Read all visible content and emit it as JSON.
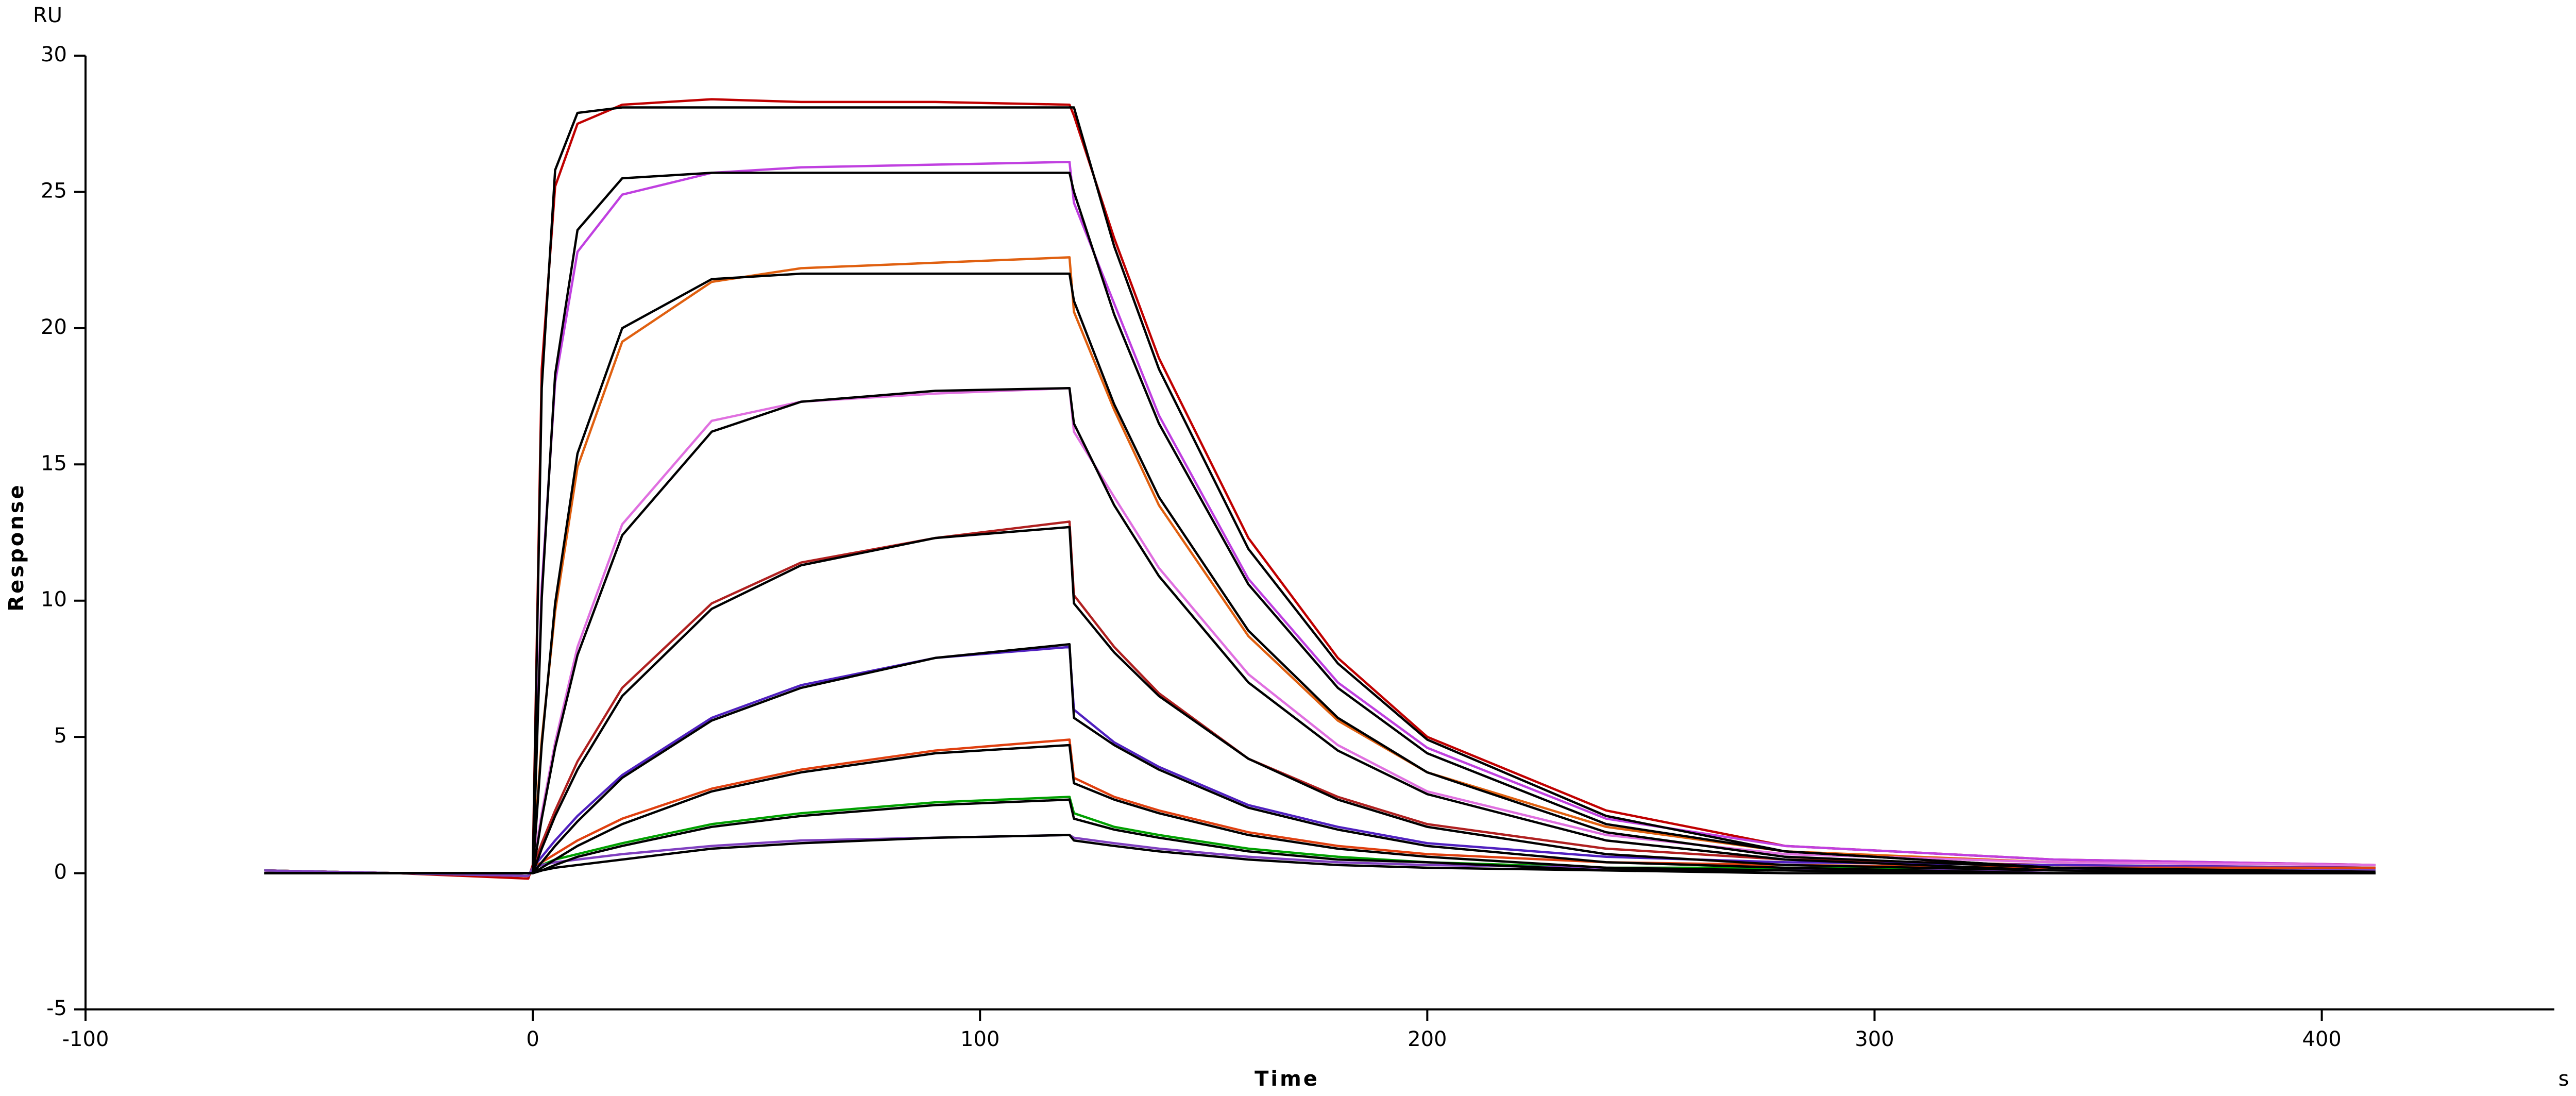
{
  "chart_data": {
    "type": "line",
    "y_unit": "RU",
    "x_unit": "s",
    "ylabel": "Response",
    "xlabel": "Time",
    "x": [
      -60,
      -30,
      -1,
      0,
      2,
      5,
      10,
      20,
      40,
      60,
      90,
      120,
      121,
      130,
      140,
      160,
      180,
      200,
      240,
      280,
      340,
      412
    ],
    "series": [
      {
        "color": "#c00000",
        "values": [
          0.1,
          0,
          -0.2,
          0.3,
          18.5,
          25.2,
          27.5,
          28.2,
          28.4,
          28.3,
          28.3,
          28.2,
          27.8,
          23.3,
          18.9,
          12.3,
          7.9,
          5.0,
          2.3,
          1.0,
          0.5,
          0.3
        ]
      },
      {
        "color": "#c040e0",
        "values": [
          0.1,
          0,
          -0.1,
          0.2,
          10.5,
          18.0,
          22.8,
          24.9,
          25.7,
          25.9,
          26.0,
          26.1,
          24.6,
          20.9,
          16.8,
          10.8,
          7.0,
          4.6,
          2.0,
          1.0,
          0.5,
          0.3
        ]
      },
      {
        "color": "#e06010",
        "values": [
          0.1,
          0,
          -0.1,
          0.2,
          4.9,
          9.6,
          14.9,
          19.5,
          21.7,
          22.2,
          22.4,
          22.6,
          20.6,
          17.0,
          13.5,
          8.7,
          5.6,
          3.7,
          1.7,
          0.8,
          0.4,
          0.3
        ]
      },
      {
        "color": "#e070e0",
        "values": [
          0.1,
          0,
          -0.1,
          0.2,
          2.2,
          4.8,
          8.3,
          12.8,
          16.6,
          17.3,
          17.6,
          17.8,
          16.2,
          13.8,
          11.2,
          7.3,
          4.7,
          3.0,
          1.4,
          0.7,
          0.4,
          0.3
        ]
      },
      {
        "color": "#b02020",
        "values": [
          0.1,
          0,
          -0.1,
          0.2,
          1.1,
          2.3,
          4.1,
          6.8,
          9.9,
          11.4,
          12.3,
          12.9,
          10.2,
          8.3,
          6.6,
          4.2,
          2.8,
          1.8,
          0.9,
          0.5,
          0.3,
          0.2
        ]
      },
      {
        "color": "#5020c0",
        "values": [
          0.1,
          0,
          -0.1,
          0.2,
          0.6,
          1.2,
          2.1,
          3.6,
          5.7,
          6.9,
          7.9,
          8.3,
          6.0,
          4.8,
          3.9,
          2.5,
          1.7,
          1.1,
          0.6,
          0.4,
          0.3,
          0.2
        ]
      },
      {
        "color": "#e04010",
        "values": [
          0.1,
          0,
          -0.1,
          0.2,
          0.4,
          0.7,
          1.2,
          2.0,
          3.1,
          3.8,
          4.5,
          4.9,
          3.5,
          2.8,
          2.3,
          1.5,
          1.0,
          0.7,
          0.4,
          0.3,
          0.2,
          0.2
        ]
      },
      {
        "color": "#00a000",
        "values": [
          0.1,
          0,
          -0.1,
          0.2,
          0.3,
          0.5,
          0.7,
          1.1,
          1.8,
          2.2,
          2.6,
          2.8,
          2.2,
          1.7,
          1.4,
          0.9,
          0.6,
          0.4,
          0.2,
          0.2,
          0.1,
          0.1
        ]
      },
      {
        "color": "#8040c0",
        "values": [
          0.1,
          0,
          -0.1,
          0.2,
          0.3,
          0.4,
          0.5,
          0.7,
          1.0,
          1.2,
          1.3,
          1.4,
          1.3,
          1.1,
          0.9,
          0.6,
          0.4,
          0.3,
          0.2,
          0.1,
          0.1,
          0.1
        ]
      },
      {
        "color": "#000000",
        "values": [
          0,
          0,
          0,
          0,
          17.8,
          25.8,
          27.9,
          28.1,
          28.1,
          28.1,
          28.1,
          28.1,
          28.1,
          23.0,
          18.5,
          11.9,
          7.7,
          4.9,
          2.1,
          0.8,
          0.2,
          0.05
        ]
      },
      {
        "color": "#000000",
        "values": [
          0,
          0,
          0,
          0,
          10.1,
          18.3,
          23.6,
          25.5,
          25.7,
          25.7,
          25.7,
          25.7,
          25.0,
          20.5,
          16.5,
          10.6,
          6.8,
          4.4,
          1.8,
          0.8,
          0.2,
          0.0
        ]
      },
      {
        "color": "#000000",
        "values": [
          0,
          0,
          0,
          0,
          4.7,
          9.9,
          15.4,
          20.0,
          21.8,
          22.0,
          22.0,
          22.0,
          21.0,
          17.2,
          13.8,
          8.9,
          5.7,
          3.7,
          1.5,
          0.6,
          0.2,
          0.0
        ]
      },
      {
        "color": "#000000",
        "values": [
          0,
          0,
          0,
          0,
          2.0,
          4.6,
          8.0,
          12.4,
          16.2,
          17.3,
          17.7,
          17.8,
          16.5,
          13.5,
          10.9,
          7.0,
          4.5,
          2.9,
          1.2,
          0.5,
          0.1,
          0.0
        ]
      },
      {
        "color": "#000000",
        "values": [
          0,
          0,
          0,
          0,
          0.9,
          2.1,
          3.8,
          6.5,
          9.7,
          11.3,
          12.3,
          12.7,
          9.9,
          8.1,
          6.5,
          4.2,
          2.7,
          1.7,
          0.7,
          0.3,
          0.1,
          0.0
        ]
      },
      {
        "color": "#000000",
        "values": [
          0,
          0,
          0,
          0,
          0.4,
          1.0,
          1.9,
          3.5,
          5.6,
          6.8,
          7.9,
          8.4,
          5.7,
          4.7,
          3.8,
          2.4,
          1.6,
          1.0,
          0.4,
          0.2,
          0.0,
          0.0
        ]
      },
      {
        "color": "#000000",
        "values": [
          0,
          0,
          0,
          0,
          0.2,
          0.5,
          1.0,
          1.8,
          3.0,
          3.7,
          4.4,
          4.7,
          3.3,
          2.7,
          2.2,
          1.4,
          0.9,
          0.6,
          0.2,
          0.1,
          0.0,
          0.0
        ]
      },
      {
        "color": "#000000",
        "values": [
          0,
          0,
          0,
          0,
          0.1,
          0.3,
          0.6,
          1.0,
          1.7,
          2.1,
          2.5,
          2.7,
          2.0,
          1.6,
          1.3,
          0.8,
          0.5,
          0.4,
          0.1,
          0.1,
          0.0,
          0.0
        ]
      },
      {
        "color": "#000000",
        "values": [
          0,
          0,
          0,
          0,
          0.1,
          0.2,
          0.3,
          0.5,
          0.9,
          1.1,
          1.3,
          1.4,
          1.2,
          1.0,
          0.8,
          0.5,
          0.3,
          0.2,
          0.1,
          0.0,
          0.0,
          0.0
        ]
      }
    ],
    "xlim": [
      -100,
      452
    ],
    "ylim": [
      -5,
      30
    ],
    "xticks": [
      -100,
      0,
      100,
      200,
      300,
      400
    ],
    "yticks": [
      -5,
      0,
      5,
      10,
      15,
      20,
      25,
      30
    ],
    "grid": false
  }
}
